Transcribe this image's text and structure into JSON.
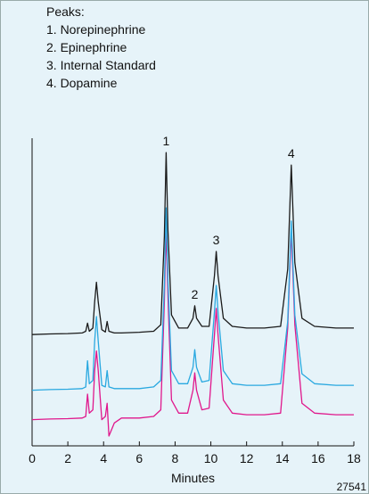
{
  "chart_data": {
    "type": "line",
    "peaks_title": "Peaks:",
    "peaks": [
      "1. Norepinephrine",
      "2. Epinephrine",
      "3. Internal Standard",
      "4. Dopamine"
    ],
    "annotations": [
      "1",
      "2",
      "3",
      "4"
    ],
    "xlabel": "Minutes",
    "footnote": "27541",
    "xlim": [
      0,
      18
    ],
    "xticks": [
      0,
      2,
      4,
      6,
      8,
      10,
      12,
      14,
      16,
      18
    ],
    "ylim": [
      6,
      100
    ],
    "x": [
      0,
      1,
      2,
      2.8,
      3.0,
      3.1,
      3.2,
      3.4,
      3.5,
      3.6,
      3.7,
      3.9,
      4.1,
      4.2,
      4.3,
      4.6,
      5,
      6,
      6.8,
      7.2,
      7.4,
      7.5,
      7.6,
      7.8,
      8.2,
      8.7,
      9.0,
      9.1,
      9.2,
      9.5,
      9.9,
      10.2,
      10.3,
      10.4,
      10.7,
      11.2,
      12,
      13,
      13.9,
      14.3,
      14.5,
      14.7,
      15.1,
      15.8,
      17,
      18
    ],
    "series": [
      {
        "color": "#1a1a1a",
        "values": [
          40,
          40.2,
          40.3,
          40.5,
          41,
          43.5,
          41,
          42,
          50,
          56,
          50,
          41.5,
          40.8,
          44,
          41,
          40.5,
          40.5,
          40.7,
          41,
          43,
          70,
          95.6,
          72,
          46,
          42,
          42,
          45,
          48.8,
          45,
          42.5,
          42.5,
          58,
          65.4,
          58,
          45,
          42.5,
          42,
          42,
          42.5,
          60,
          91.8,
          62,
          45,
          42.5,
          42,
          42
        ]
      },
      {
        "color": "#29a8e0",
        "values": [
          23,
          23.2,
          23.3,
          23.5,
          24,
          32,
          25,
          26,
          38,
          45.5,
          38,
          24.5,
          24,
          29,
          24,
          23.5,
          23.5,
          23.5,
          24,
          26,
          55,
          78.7,
          57,
          29,
          25,
          25,
          30,
          35.4,
          30,
          25.5,
          26,
          47,
          55,
          47,
          29,
          25,
          24.5,
          24.5,
          25,
          44,
          74.7,
          46,
          28,
          25,
          24.5,
          24.5
        ]
      },
      {
        "color": "#e0178c",
        "values": [
          14,
          14.2,
          14.3,
          14.5,
          15,
          21.8,
          16,
          17,
          29,
          35,
          29,
          14,
          15,
          19,
          9,
          13,
          14.5,
          14.5,
          15,
          17,
          50,
          72.5,
          52,
          20,
          16,
          16,
          23,
          28.3,
          23,
          17,
          17.5,
          40,
          48,
          40,
          20,
          16,
          15.5,
          15.5,
          16,
          42,
          72,
          43,
          19,
          16,
          15.5,
          15.5
        ]
      }
    ]
  }
}
